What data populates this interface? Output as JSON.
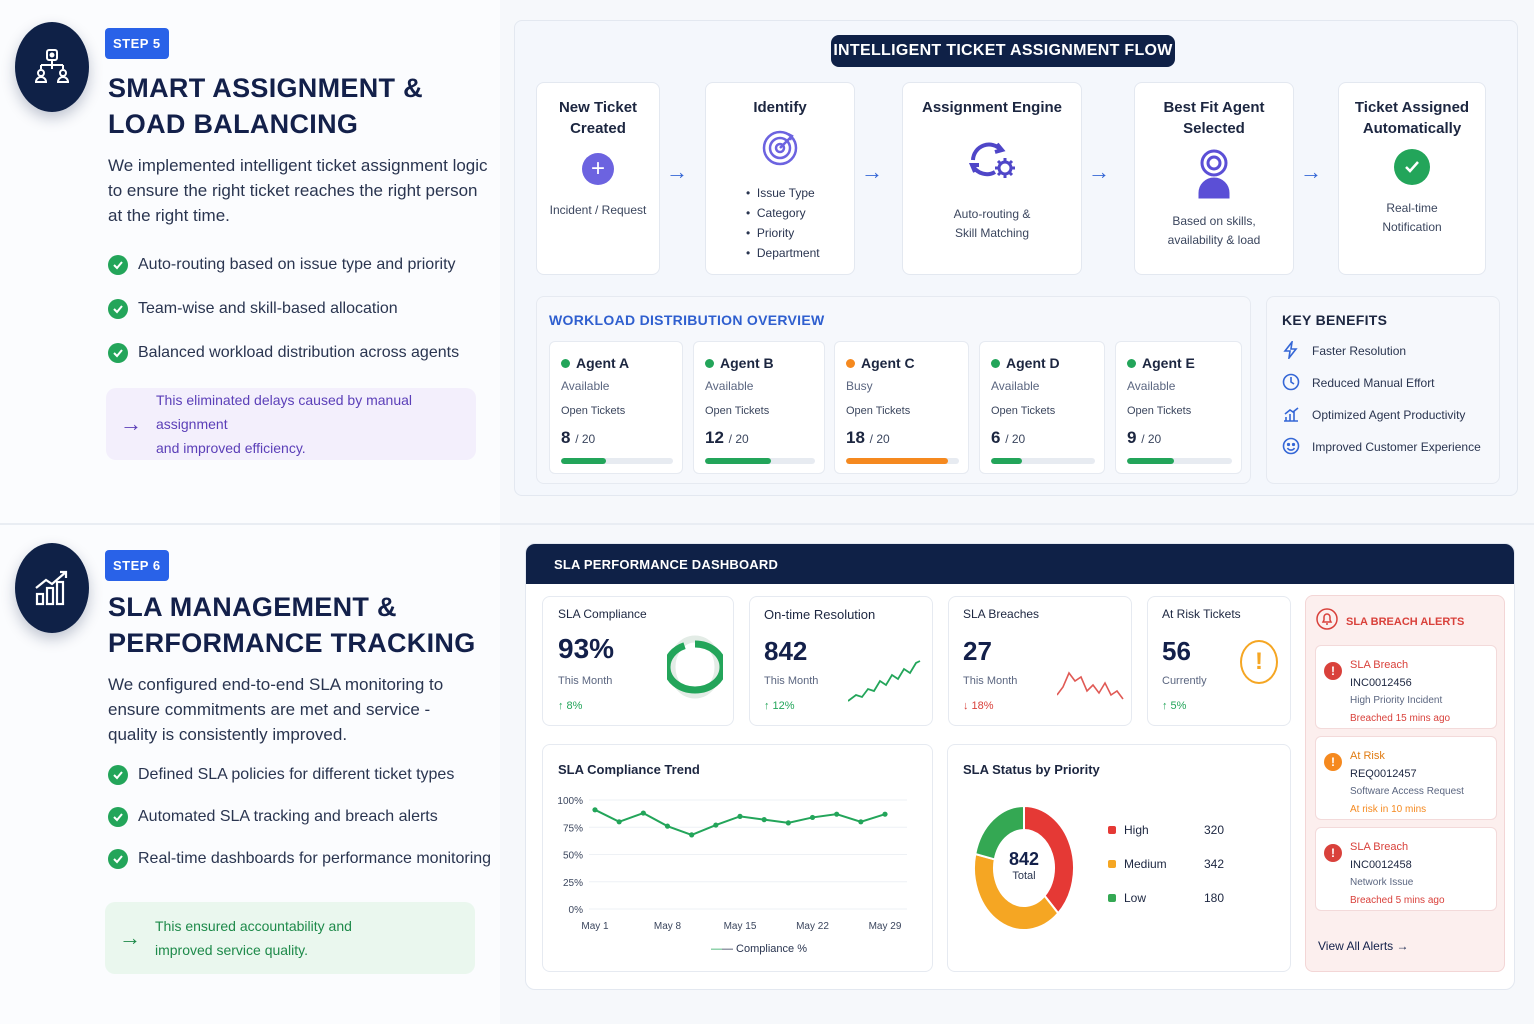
{
  "step5": {
    "badge": "STEP 5",
    "title_line1": "SMART ASSIGNMENT &",
    "title_line2": "LOAD BALANCING",
    "desc_line1": "We implemented intelligent ticket assignment logic",
    "desc_line2": "to ensure the right ticket reaches the right person",
    "desc_line3": "at the right time.",
    "checks": [
      "Auto-routing based on issue type and priority",
      "Team-wise and skill-based allocation",
      "Balanced workload distribution across agents"
    ],
    "callout_line1": "This eliminated delays caused by manual assignment",
    "callout_line2": "and improved efficiency."
  },
  "flow": {
    "title": "INTELLIGENT TICKET ASSIGNMENT FLOW",
    "cards": [
      {
        "title1": "New Ticket",
        "title2": "Created",
        "sub1": "Incident / Request",
        "sub2": ""
      },
      {
        "title1": "Identify",
        "title2": "",
        "sub1": "",
        "sub2": ""
      },
      {
        "title1": "Assignment Engine",
        "title2": "",
        "sub1": "Auto-routing &",
        "sub2": "Skill Matching"
      },
      {
        "title1": "Best Fit Agent",
        "title2": "Selected",
        "sub1": "Based on skills,",
        "sub2": "availability & load"
      },
      {
        "title1": "Ticket Assigned",
        "title2": "Automatically",
        "sub1": "Real-time",
        "sub2": "Notification"
      }
    ],
    "identify_items": [
      "Issue Type",
      "Category",
      "Priority",
      "Department"
    ]
  },
  "workload": {
    "title": "WORKLOAD DISTRIBUTION OVERVIEW",
    "open_label": "Open Tickets",
    "agents": [
      {
        "name": "Agent A",
        "status": "Available",
        "open": "8",
        "max": "/ 20",
        "fill": 0.4,
        "color": "#23a55a"
      },
      {
        "name": "Agent B",
        "status": "Available",
        "open": "12",
        "max": "/ 20",
        "fill": 0.6,
        "color": "#23a55a"
      },
      {
        "name": "Agent C",
        "status": "Busy",
        "open": "18",
        "max": "/ 20",
        "fill": 0.9,
        "color": "#f5891f"
      },
      {
        "name": "Agent D",
        "status": "Available",
        "open": "6",
        "max": "/ 20",
        "fill": 0.3,
        "color": "#23a55a"
      },
      {
        "name": "Agent E",
        "status": "Available",
        "open": "9",
        "max": "/ 20",
        "fill": 0.45,
        "color": "#23a55a"
      }
    ]
  },
  "benefits": {
    "title": "KEY BENEFITS",
    "items": [
      {
        "icon": "lightning-icon",
        "label": "Faster Resolution"
      },
      {
        "icon": "clock-icon",
        "label": "Reduced Manual Effort"
      },
      {
        "icon": "bar-chart-icon",
        "label": "Optimized Agent Productivity"
      },
      {
        "icon": "smiley-icon",
        "label": "Improved Customer Experience"
      }
    ]
  },
  "step6": {
    "badge": "STEP 6",
    "title_line1": "SLA MANAGEMENT &",
    "title_line2": "PERFORMANCE TRACKING",
    "desc_line1": "We configured end-to-end SLA monitoring to",
    "desc_line2": "ensure commitments are met and service -",
    "desc_line3": "quality is consistently improved.",
    "checks": [
      "Defined SLA policies for different ticket types",
      "Automated SLA tracking and breach alerts",
      "Real-time dashboards for performance monitoring"
    ],
    "callout_line1": "This ensured accountability and",
    "callout_line2": "improved service quality."
  },
  "dashboard": {
    "title": "SLA PERFORMANCE DASHBOARD",
    "kpis": [
      {
        "label": "SLA Compliance",
        "value": "93%",
        "sub": "This Month",
        "change": "↑ 8%",
        "dir": "up",
        "gauge": 0.93
      },
      {
        "label": "On-time Resolution",
        "value": "842",
        "sub": "This Month",
        "change": "↑ 12%",
        "dir": "up"
      },
      {
        "label": "SLA Breaches",
        "value": "27",
        "sub": "This Month",
        "change": "↓ 18%",
        "dir": "down"
      },
      {
        "label": "At Risk Tickets",
        "value": "56",
        "sub": "Currently",
        "change": "↑ 5%",
        "dir": "up"
      }
    ],
    "alerts": {
      "title": "SLA BREACH ALERTS",
      "items": [
        {
          "type": "SLA Breach",
          "id": "INC0012456",
          "desc": "High Priority Incident",
          "time": "Breached 15 mins ago",
          "color": "#d9413b"
        },
        {
          "type": "At Risk",
          "id": "REQ0012457",
          "desc": "Software Access Request",
          "time": "At risk in 10 mins",
          "color": "#f5891f"
        },
        {
          "type": "SLA Breach",
          "id": "INC0012458",
          "desc": "Network Issue",
          "time": "Breached 5 mins ago",
          "color": "#d9413b"
        }
      ],
      "view_all": "View All Alerts →"
    },
    "trend": {
      "title": "SLA Compliance Trend",
      "legend": "— Compliance %"
    },
    "priority": {
      "title": "SLA Status by Priority",
      "total_value": "842",
      "total_label": "Total"
    }
  },
  "chart_data": [
    {
      "type": "line",
      "title": "SLA Compliance Trend",
      "x": [
        "May 1",
        "",
        "",
        "May 8",
        "",
        "",
        "May 15",
        "",
        "",
        "May 22",
        "",
        "",
        "May 29"
      ],
      "x_ticks": [
        "May 1",
        "May 8",
        "May 15",
        "May 22",
        "May 29"
      ],
      "y_ticks": [
        "100%",
        "75%",
        "50%",
        "25%",
        "0%"
      ],
      "ylim": [
        0,
        100
      ],
      "series": [
        {
          "name": "Compliance %",
          "values": [
            91,
            80,
            88,
            76,
            68,
            77,
            85,
            82,
            79,
            84,
            87,
            80,
            87
          ]
        }
      ],
      "color": "#23a55a"
    },
    {
      "type": "pie",
      "title": "SLA Status by Priority",
      "categories": [
        "High",
        "Medium",
        "Low"
      ],
      "values": [
        320,
        342,
        180
      ],
      "colors": [
        "#e53935",
        "#f5a623",
        "#34a853"
      ]
    }
  ]
}
